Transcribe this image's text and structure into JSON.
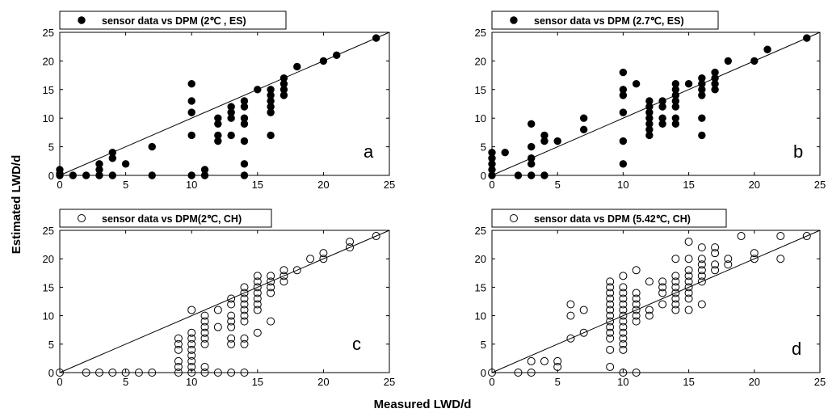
{
  "figure": {
    "xlabel": "Measured LWD/d",
    "ylabel": "Estimated LWD/d"
  },
  "chart_data": [
    {
      "type": "scatter",
      "letter": "a",
      "marker": "filled",
      "legend": "sensor data vs DPM (2℃ , ES)",
      "legend_position": "top-left",
      "xlim": [
        0,
        25
      ],
      "ylim": [
        0,
        25
      ],
      "xticks": [
        0,
        5,
        10,
        15,
        20,
        25
      ],
      "yticks": [
        0,
        5,
        10,
        15,
        20,
        25
      ],
      "reference_line": "y = x",
      "points": [
        [
          0,
          0
        ],
        [
          0,
          1
        ],
        [
          0,
          0.3
        ],
        [
          1,
          0
        ],
        [
          2,
          0
        ],
        [
          3,
          0
        ],
        [
          3,
          1
        ],
        [
          3,
          2
        ],
        [
          4,
          0
        ],
        [
          4,
          3
        ],
        [
          4,
          4
        ],
        [
          5,
          2
        ],
        [
          7,
          0
        ],
        [
          7,
          5
        ],
        [
          10,
          0
        ],
        [
          10,
          7
        ],
        [
          10,
          11
        ],
        [
          10,
          13
        ],
        [
          10,
          16
        ],
        [
          11,
          0
        ],
        [
          11,
          1
        ],
        [
          12,
          6
        ],
        [
          12,
          7
        ],
        [
          12,
          9
        ],
        [
          12,
          10
        ],
        [
          13,
          7
        ],
        [
          13,
          10
        ],
        [
          13,
          11
        ],
        [
          13,
          12
        ],
        [
          14,
          0
        ],
        [
          14,
          2
        ],
        [
          14,
          6
        ],
        [
          14,
          9
        ],
        [
          14,
          10
        ],
        [
          14,
          12
        ],
        [
          14,
          13
        ],
        [
          15,
          15
        ],
        [
          16,
          7
        ],
        [
          16,
          11
        ],
        [
          16,
          12
        ],
        [
          16,
          13
        ],
        [
          16,
          14
        ],
        [
          16,
          15
        ],
        [
          17,
          14
        ],
        [
          17,
          15
        ],
        [
          17,
          16
        ],
        [
          17,
          17
        ],
        [
          18,
          19
        ],
        [
          20,
          20
        ],
        [
          21,
          21
        ],
        [
          24,
          24
        ]
      ]
    },
    {
      "type": "scatter",
      "letter": "b",
      "marker": "filled",
      "legend": "sensor data vs DPM (2.7℃, ES)",
      "legend_position": "top-left",
      "xlim": [
        0,
        25
      ],
      "ylim": [
        0,
        25
      ],
      "xticks": [
        0,
        5,
        10,
        15,
        20,
        25
      ],
      "yticks": [
        0,
        5,
        10,
        15,
        20,
        25
      ],
      "reference_line": "y = x",
      "points": [
        [
          0,
          0
        ],
        [
          0,
          1
        ],
        [
          0,
          2
        ],
        [
          0,
          3
        ],
        [
          0,
          4
        ],
        [
          1,
          4
        ],
        [
          2,
          0
        ],
        [
          3,
          0
        ],
        [
          3,
          2
        ],
        [
          3,
          3
        ],
        [
          3,
          5
        ],
        [
          3,
          9
        ],
        [
          4,
          0
        ],
        [
          4,
          6
        ],
        [
          4,
          7
        ],
        [
          5,
          6
        ],
        [
          7,
          8
        ],
        [
          7,
          10
        ],
        [
          10,
          2
        ],
        [
          10,
          6
        ],
        [
          10,
          11
        ],
        [
          10,
          14
        ],
        [
          10,
          15
        ],
        [
          10,
          18
        ],
        [
          11,
          16
        ],
        [
          12,
          7
        ],
        [
          12,
          8
        ],
        [
          12,
          9
        ],
        [
          12,
          10
        ],
        [
          12,
          11
        ],
        [
          12,
          12
        ],
        [
          12,
          13
        ],
        [
          13,
          9
        ],
        [
          13,
          10
        ],
        [
          13,
          12
        ],
        [
          13,
          13
        ],
        [
          14,
          9
        ],
        [
          14,
          10
        ],
        [
          14,
          12
        ],
        [
          14,
          13
        ],
        [
          14,
          14
        ],
        [
          14,
          15
        ],
        [
          14,
          16
        ],
        [
          15,
          16
        ],
        [
          16,
          7
        ],
        [
          16,
          10
        ],
        [
          16,
          14
        ],
        [
          16,
          15
        ],
        [
          16,
          16
        ],
        [
          16,
          17
        ],
        [
          17,
          15
        ],
        [
          17,
          16
        ],
        [
          17,
          17
        ],
        [
          17,
          18
        ],
        [
          18,
          20
        ],
        [
          20,
          20
        ],
        [
          21,
          22
        ],
        [
          24,
          24
        ]
      ]
    },
    {
      "type": "scatter",
      "letter": "c",
      "marker": "open",
      "legend": "sensor data vs DPM(2℃, CH)",
      "legend_position": "top-left",
      "xlim": [
        0,
        25
      ],
      "ylim": [
        0,
        25
      ],
      "xticks": [
        0,
        5,
        10,
        15,
        20,
        25
      ],
      "yticks": [
        0,
        5,
        10,
        15,
        20,
        25
      ],
      "reference_line": "y = x",
      "points": [
        [
          0,
          0
        ],
        [
          2,
          0
        ],
        [
          3,
          0
        ],
        [
          4,
          0
        ],
        [
          5,
          0
        ],
        [
          6,
          0
        ],
        [
          7,
          0
        ],
        [
          9,
          0
        ],
        [
          9,
          1
        ],
        [
          9,
          2
        ],
        [
          9,
          4
        ],
        [
          9,
          5
        ],
        [
          9,
          6
        ],
        [
          10,
          0
        ],
        [
          10,
          1
        ],
        [
          10,
          2
        ],
        [
          10,
          3
        ],
        [
          10,
          4
        ],
        [
          10,
          5
        ],
        [
          10,
          6
        ],
        [
          10,
          7
        ],
        [
          10,
          11
        ],
        [
          11,
          0
        ],
        [
          11,
          1
        ],
        [
          11,
          5
        ],
        [
          11,
          6
        ],
        [
          11,
          7
        ],
        [
          11,
          8
        ],
        [
          11,
          9
        ],
        [
          11,
          10
        ],
        [
          12,
          0
        ],
        [
          12,
          8
        ],
        [
          12,
          11
        ],
        [
          13,
          0
        ],
        [
          13,
          5
        ],
        [
          13,
          6
        ],
        [
          13,
          8
        ],
        [
          13,
          9
        ],
        [
          13,
          10
        ],
        [
          13,
          12
        ],
        [
          13,
          13
        ],
        [
          14,
          0
        ],
        [
          14,
          5
        ],
        [
          14,
          6
        ],
        [
          14,
          9
        ],
        [
          14,
          10
        ],
        [
          14,
          11
        ],
        [
          14,
          12
        ],
        [
          14,
          13
        ],
        [
          14,
          14
        ],
        [
          14,
          15
        ],
        [
          15,
          7
        ],
        [
          15,
          11
        ],
        [
          15,
          12
        ],
        [
          15,
          13
        ],
        [
          15,
          14
        ],
        [
          15,
          15
        ],
        [
          15,
          16
        ],
        [
          15,
          17
        ],
        [
          16,
          9
        ],
        [
          16,
          14
        ],
        [
          16,
          15
        ],
        [
          16,
          16
        ],
        [
          16,
          17
        ],
        [
          17,
          16
        ],
        [
          17,
          17
        ],
        [
          17,
          18
        ],
        [
          18,
          18
        ],
        [
          19,
          20
        ],
        [
          20,
          20
        ],
        [
          20,
          21
        ],
        [
          22,
          22
        ],
        [
          22,
          23
        ],
        [
          24,
          24
        ]
      ]
    },
    {
      "type": "scatter",
      "letter": "d",
      "marker": "open",
      "legend": "sensor data vs DPM (5.42℃, CH)",
      "legend_position": "top-left",
      "xlim": [
        0,
        25
      ],
      "ylim": [
        0,
        25
      ],
      "xticks": [
        0,
        5,
        10,
        15,
        20,
        25
      ],
      "yticks": [
        0,
        5,
        10,
        15,
        20,
        25
      ],
      "reference_line": "y = x",
      "points": [
        [
          0,
          0
        ],
        [
          2,
          0
        ],
        [
          3,
          0
        ],
        [
          3,
          2
        ],
        [
          4,
          2
        ],
        [
          5,
          1
        ],
        [
          5,
          2
        ],
        [
          6,
          6
        ],
        [
          6,
          10
        ],
        [
          6,
          12
        ],
        [
          7,
          7
        ],
        [
          7,
          11
        ],
        [
          9,
          1
        ],
        [
          9,
          4
        ],
        [
          9,
          6
        ],
        [
          9,
          7
        ],
        [
          9,
          8
        ],
        [
          9,
          9
        ],
        [
          9,
          10
        ],
        [
          9,
          11
        ],
        [
          9,
          12
        ],
        [
          9,
          13
        ],
        [
          9,
          14
        ],
        [
          9,
          15
        ],
        [
          9,
          16
        ],
        [
          10,
          0
        ],
        [
          10,
          4
        ],
        [
          10,
          5
        ],
        [
          10,
          6
        ],
        [
          10,
          7
        ],
        [
          10,
          8
        ],
        [
          10,
          9
        ],
        [
          10,
          10
        ],
        [
          10,
          11
        ],
        [
          10,
          12
        ],
        [
          10,
          13
        ],
        [
          10,
          14
        ],
        [
          10,
          15
        ],
        [
          10,
          17
        ],
        [
          11,
          0
        ],
        [
          11,
          9
        ],
        [
          11,
          10
        ],
        [
          11,
          11
        ],
        [
          11,
          12
        ],
        [
          11,
          13
        ],
        [
          11,
          14
        ],
        [
          11,
          18
        ],
        [
          12,
          10
        ],
        [
          12,
          11
        ],
        [
          12,
          16
        ],
        [
          13,
          12
        ],
        [
          13,
          14
        ],
        [
          13,
          15
        ],
        [
          13,
          16
        ],
        [
          14,
          11
        ],
        [
          14,
          12
        ],
        [
          14,
          13
        ],
        [
          14,
          14
        ],
        [
          14,
          15
        ],
        [
          14,
          16
        ],
        [
          14,
          17
        ],
        [
          14,
          20
        ],
        [
          15,
          11
        ],
        [
          15,
          13
        ],
        [
          15,
          14
        ],
        [
          15,
          15
        ],
        [
          15,
          16
        ],
        [
          15,
          17
        ],
        [
          15,
          18
        ],
        [
          15,
          20
        ],
        [
          15,
          23
        ],
        [
          16,
          12
        ],
        [
          16,
          16
        ],
        [
          16,
          17
        ],
        [
          16,
          18
        ],
        [
          16,
          19
        ],
        [
          16,
          20
        ],
        [
          16,
          22
        ],
        [
          17,
          18
        ],
        [
          17,
          19
        ],
        [
          17,
          21
        ],
        [
          17,
          22
        ],
        [
          18,
          19
        ],
        [
          18,
          20
        ],
        [
          19,
          24
        ],
        [
          20,
          20
        ],
        [
          20,
          21
        ],
        [
          22,
          20
        ],
        [
          22,
          24
        ],
        [
          24,
          24
        ]
      ]
    }
  ]
}
